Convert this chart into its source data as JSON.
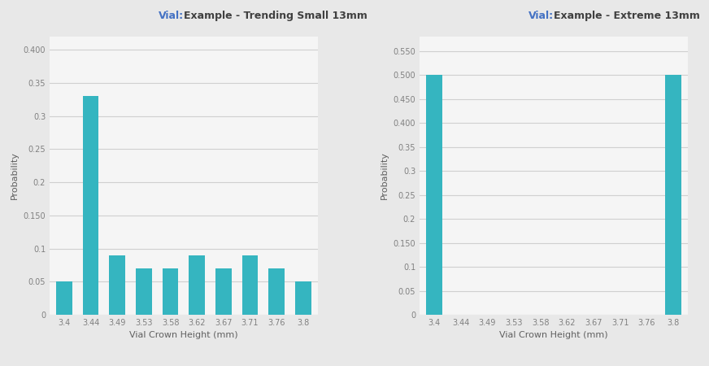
{
  "chart1": {
    "title_blue": "Vial:",
    "title_black": "Example - Trending Small 13mm",
    "categories": [
      "3.4",
      "3.44",
      "3.49",
      "3.53",
      "3.58",
      "3.62",
      "3.67",
      "3.71",
      "3.76",
      "3.8"
    ],
    "values": [
      0.05,
      0.33,
      0.09,
      0.07,
      0.07,
      0.09,
      0.07,
      0.09,
      0.07,
      0.05
    ],
    "ylim": [
      0,
      0.42
    ],
    "yticks": [
      0,
      0.05,
      0.1,
      0.15,
      0.2,
      0.25,
      0.3,
      0.35,
      0.4
    ],
    "ytick_labels": [
      "0",
      "0.05",
      "0.1",
      "0.150",
      "0.2",
      "0.25",
      "0.3",
      "0.35",
      "0.400"
    ],
    "xlabel": "Vial Crown Height (mm)",
    "ylabel": "Probability"
  },
  "chart2": {
    "title_blue": "Vial:",
    "title_black": "Example - Extreme 13mm",
    "categories": [
      "3.4",
      "3.44",
      "3.49",
      "3.53",
      "3.58",
      "3.62",
      "3.67",
      "3.71",
      "3.76",
      "3.8"
    ],
    "values": [
      0.5,
      0.0,
      0.0,
      0.0,
      0.0,
      0.0,
      0.0,
      0.0,
      0.0,
      0.5
    ],
    "ylim": [
      0,
      0.58
    ],
    "yticks": [
      0,
      0.05,
      0.1,
      0.15,
      0.2,
      0.25,
      0.3,
      0.35,
      0.4,
      0.45,
      0.5,
      0.55
    ],
    "ytick_labels": [
      "0",
      "0.05",
      "0.1",
      "0.150",
      "0.2",
      "0.25",
      "0.3",
      "0.35",
      "0.400",
      "0.450",
      "0.500",
      "0.550"
    ],
    "xlabel": "Vial Crown Height (mm)",
    "ylabel": "Probability"
  },
  "bar_color": "#35b5c0",
  "background_color": "#e8e8e8",
  "plot_bg_color": "#f5f5f5",
  "grid_color": "#d0d0d0",
  "title_blue_color": "#4472c4",
  "title_black_color": "#404040",
  "tick_color": "#808080",
  "label_color": "#606060",
  "title_fontsize": 9.0,
  "tick_fontsize": 7.0,
  "label_fontsize": 8.0,
  "bar_width": 0.6
}
